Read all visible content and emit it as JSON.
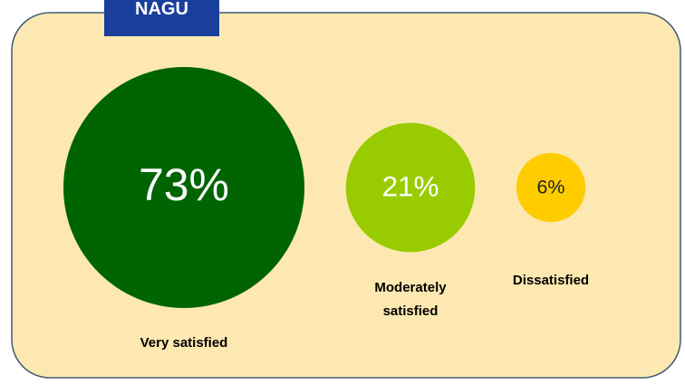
{
  "chart_data": {
    "type": "bubble",
    "title": "NAGU",
    "categories": [
      "Very satisfied",
      "Moderately satisfied",
      "Dissatisfied"
    ],
    "values": [
      73,
      21,
      6
    ],
    "value_labels": [
      "73%",
      "21%",
      "6%"
    ],
    "colors": [
      "#006400",
      "#99cc00",
      "#ffcc00"
    ]
  }
}
